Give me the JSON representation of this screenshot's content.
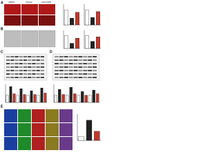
{
  "panels": [
    "A",
    "B",
    "C",
    "D",
    "E"
  ],
  "headers": [
    "DMSO",
    "Vehicle",
    "Aβ+rhAPN"
  ],
  "charts": [
    {
      "panel": "A",
      "values": [
        1.0,
        0.45,
        0.85
      ],
      "colors": [
        "#ffffff",
        "#222222",
        "#c0392b"
      ],
      "ylim": [
        0,
        1.4
      ]
    },
    {
      "panel": "A",
      "values": [
        1.0,
        0.5,
        0.9
      ],
      "colors": [
        "#ffffff",
        "#222222",
        "#c0392b"
      ],
      "ylim": [
        0,
        1.4
      ]
    },
    {
      "panel": "B",
      "values": [
        1.0,
        0.4,
        0.8
      ],
      "colors": [
        "#ffffff",
        "#222222",
        "#c0392b"
      ],
      "ylim": [
        0,
        1.4
      ]
    },
    {
      "panel": "B",
      "values": [
        1.0,
        0.55,
        0.9
      ],
      "colors": [
        "#ffffff",
        "#222222",
        "#c0392b"
      ],
      "ylim": [
        0,
        1.4
      ]
    },
    {
      "panel": "C",
      "values": [
        1.0,
        2.2,
        1.2,
        1.0,
        1.9,
        1.1,
        1.0,
        1.6,
        1.1,
        1.0,
        2.0,
        1.3
      ],
      "colors": [
        "#ffffff",
        "#222222",
        "#c0392b",
        "#ffffff",
        "#222222",
        "#c0392b",
        "#ffffff",
        "#222222",
        "#c0392b",
        "#ffffff",
        "#222222",
        "#c0392b"
      ],
      "ylim": [
        0,
        2.5
      ]
    },
    {
      "panel": "D",
      "values": [
        1.0,
        1.8,
        1.1,
        1.0,
        2.1,
        1.2,
        1.0,
        1.5,
        1.0,
        1.0,
        1.7,
        1.2
      ],
      "colors": [
        "#ffffff",
        "#222222",
        "#c0392b",
        "#ffffff",
        "#222222",
        "#c0392b",
        "#ffffff",
        "#222222",
        "#c0392b",
        "#ffffff",
        "#222222",
        "#c0392b"
      ],
      "ylim": [
        0,
        2.5
      ]
    },
    {
      "panel": "E",
      "values": [
        0.2,
        1.0,
        0.45
      ],
      "colors": [
        "#ffffff",
        "#222222",
        "#c0392b"
      ],
      "ylim": [
        0,
        1.3
      ]
    }
  ]
}
